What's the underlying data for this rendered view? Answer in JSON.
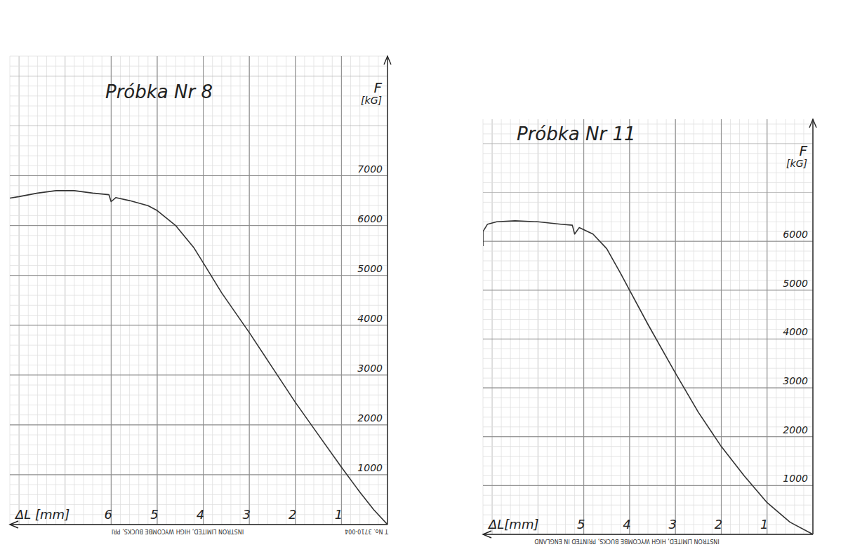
{
  "chart_data": [
    {
      "type": "line",
      "title": "Próbka Nr 8",
      "x_label": "ΔL [mm]",
      "y_label": "F [kG]",
      "x": [
        8.2,
        8.0,
        7.6,
        7.2,
        6.8,
        6.4,
        6.05,
        6.0,
        5.9,
        5.6,
        5.2,
        5.0,
        4.6,
        4.2,
        4.0,
        3.6,
        3.0,
        2.5,
        2.0,
        1.5,
        1.0,
        0.6,
        0.3,
        0
      ],
      "values": [
        6550,
        6580,
        6650,
        6700,
        6700,
        6650,
        6620,
        6480,
        6560,
        6500,
        6400,
        6300,
        6000,
        5550,
        5250,
        4650,
        3850,
        3150,
        2450,
        1800,
        1150,
        650,
        300,
        0
      ],
      "color": "#333333",
      "xlim": [
        0,
        8.2
      ],
      "ylim": [
        0,
        9400
      ],
      "xticks": [
        1,
        2,
        3,
        4,
        5,
        6
      ],
      "yticks": [
        1000,
        2000,
        3000,
        4000,
        5000,
        6000,
        7000
      ],
      "grid": true,
      "annotations": [
        "INSTRON LIMITED, HIGH WYCOMBE BUCKS, PRI",
        "T No. 3710-004"
      ]
    },
    {
      "type": "line",
      "title": "Próbka Nr 11",
      "x_label": "ΔL[mm]",
      "y_label": "F [kG]",
      "x": [
        7.2,
        7.2,
        7.1,
        6.9,
        6.5,
        6.0,
        5.5,
        5.25,
        5.2,
        5.1,
        4.8,
        4.5,
        4.2,
        4.0,
        3.6,
        3.0,
        2.5,
        2.0,
        1.5,
        1.0,
        0.5,
        0
      ],
      "values": [
        5900,
        6200,
        6350,
        6400,
        6420,
        6400,
        6350,
        6330,
        6150,
        6280,
        6150,
        5850,
        5350,
        5000,
        4300,
        3300,
        2500,
        1800,
        1200,
        650,
        250,
        0
      ],
      "color": "#333333",
      "xlim": [
        0,
        7.2
      ],
      "ylim": [
        0,
        8500
      ],
      "xticks": [
        1,
        2,
        3,
        4,
        5
      ],
      "yticks": [
        1000,
        2000,
        3000,
        4000,
        5000,
        6000
      ],
      "grid": true,
      "annotations": [
        "INSTRON LIMITED, HIGH WYCOMBE BUCKS, PRINTED IN ENGLAND"
      ]
    }
  ]
}
